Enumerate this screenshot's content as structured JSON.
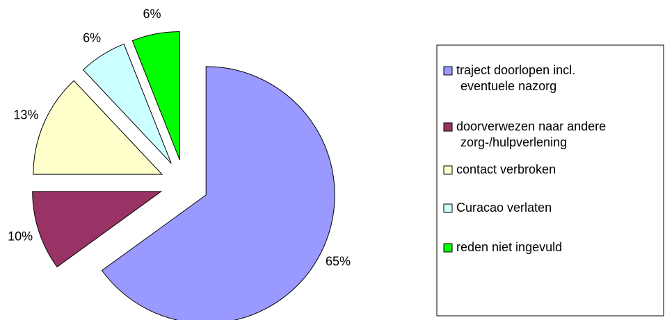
{
  "chart_data": {
    "type": "pie",
    "categories": [
      "traject doorlopen incl. eventuele nazorg",
      "doorverwezen naar andere zorg-/hulpverlening",
      "contact verbroken",
      "Curacao verlaten",
      "reden niet ingevuld"
    ],
    "values": [
      65,
      10,
      13,
      6,
      6
    ],
    "value_labels": [
      "65%",
      "10%",
      "13%",
      "6%",
      "6%"
    ],
    "colors": [
      "#9999ff",
      "#993366",
      "#ffffcc",
      "#ccffff",
      "#00ff00"
    ],
    "legend": "right"
  }
}
